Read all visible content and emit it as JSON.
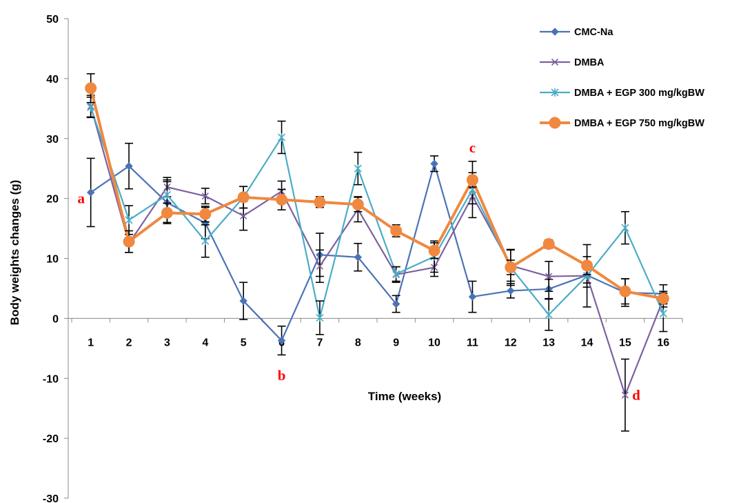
{
  "chart_data": {
    "type": "line",
    "title": "",
    "xlabel": "Time (weeks)",
    "ylabel": "Body weights changes (g)",
    "ylim": [
      -30,
      50
    ],
    "yticks": [
      "-30",
      "-20",
      "-10",
      "0",
      "10",
      "20",
      "30",
      "40",
      "50"
    ],
    "categories": [
      "1",
      "2",
      "3",
      "4",
      "5",
      "6",
      "7",
      "8",
      "9",
      "10",
      "11",
      "12",
      "13",
      "14",
      "15",
      "16"
    ],
    "grid": false,
    "legend_position": "top-right",
    "series": [
      {
        "name": "CMC-Na",
        "color": "#4a73b5",
        "marker": "diamond",
        "values": [
          21,
          25.4,
          19.3,
          15.9,
          2.9,
          -3.7,
          10.6,
          10.2,
          2.4,
          25.8,
          3.6,
          4.6,
          4.9,
          7.2,
          4.3,
          4.1
        ],
        "errors": [
          5.7,
          3.8,
          3.5,
          2.6,
          3.1,
          2.4,
          3.6,
          2.3,
          1.4,
          1.3,
          2.6,
          1.2,
          1.6,
          2.0,
          2.3,
          1.5
        ]
      },
      {
        "name": "DMBA",
        "color": "#7d60a0",
        "marker": "x",
        "values": [
          35.4,
          12.5,
          21.9,
          20.4,
          17.1,
          21.2,
          8.7,
          18.2,
          7.3,
          8.5,
          20.4,
          8.8,
          7.0,
          7.1,
          -12.8,
          3.2
        ],
        "errors": [
          1.8,
          1.5,
          1.6,
          1.3,
          2.4,
          1.7,
          2.7,
          2.1,
          1.3,
          1.5,
          1.3,
          2.6,
          2.5,
          5.2,
          6.0,
          1.3
        ]
      },
      {
        "name": "DMBA + EGP 300 mg/kgBW",
        "color": "#4aacc6",
        "marker": "star",
        "values": [
          35.2,
          16.4,
          20.6,
          12.9,
          20.2,
          30.2,
          0.1,
          25.0,
          7.4,
          10.3,
          21.5,
          8.5,
          0.6,
          7.1,
          15.1,
          0.8
        ],
        "errors": [
          1.7,
          2.4,
          2.5,
          2.7,
          1.8,
          2.7,
          2.8,
          2.7,
          1.2,
          2.6,
          4.7,
          3.0,
          2.6,
          1.2,
          2.7,
          3.0
        ]
      },
      {
        "name": "DMBA + EGP 750 mg/kgBW",
        "color": "#f0883f",
        "marker": "circle",
        "values": [
          38.4,
          12.8,
          17.6,
          17.4,
          20.2,
          19.8,
          19.4,
          19.0,
          14.6,
          11.3,
          23.1,
          8.5,
          12.4,
          8.8,
          4.5,
          3.3
        ],
        "errors": [
          2.4,
          1.8,
          1.6,
          1.3,
          1.8,
          1.7,
          0.9,
          1.2,
          1.0,
          1.3,
          1.2,
          1.2,
          0.7,
          1.5,
          2.1,
          0.9
        ]
      }
    ],
    "annotations": [
      {
        "text": "a",
        "x": 1,
        "y": 20
      },
      {
        "text": "b",
        "x": 6,
        "y": -9.5
      },
      {
        "text": "c",
        "x": 11,
        "y": 28.5
      },
      {
        "text": "d",
        "x": 15,
        "y": -12.8
      }
    ]
  }
}
